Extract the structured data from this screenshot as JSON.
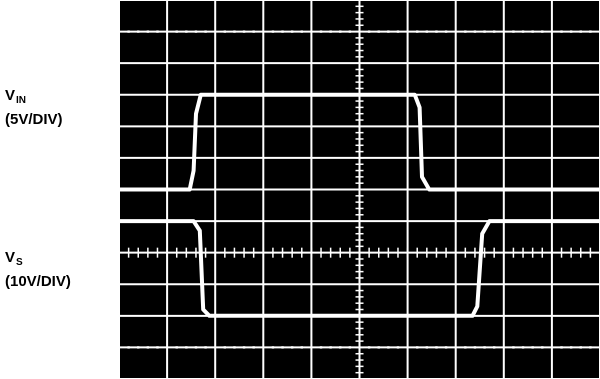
{
  "labels": {
    "vin": {
      "name": "V",
      "sub": "IN",
      "scale": "(5V/DIV)"
    },
    "vs": {
      "name": "V",
      "sub": "S",
      "scale": "(10V/DIV)"
    }
  },
  "colors": {
    "screen": "#000000",
    "grid": "#ffffff",
    "trace": "#ffffff",
    "text": "#000000"
  },
  "chart_data": {
    "type": "line",
    "title": "",
    "grid": true,
    "xlim": [
      0,
      10
    ],
    "ylim": [
      -4,
      8
    ],
    "series": [
      {
        "name": "VIN (5V/DIV)",
        "x": [
          0,
          1.47,
          1.55,
          1.6,
          1.7,
          6.15,
          6.25,
          6.3,
          6.45,
          10
        ],
        "y": [
          2.0,
          2.0,
          2.6,
          4.4,
          5.0,
          5.0,
          4.6,
          2.4,
          2.0,
          2.0
        ]
      },
      {
        "name": "VS (10V/DIV)",
        "x": [
          0,
          1.55,
          1.68,
          1.75,
          1.88,
          7.35,
          7.45,
          7.55,
          7.7,
          10
        ],
        "y": [
          1.0,
          1.0,
          0.7,
          -1.8,
          -2.0,
          -2.0,
          -1.7,
          0.6,
          1.0,
          1.0
        ]
      }
    ]
  }
}
